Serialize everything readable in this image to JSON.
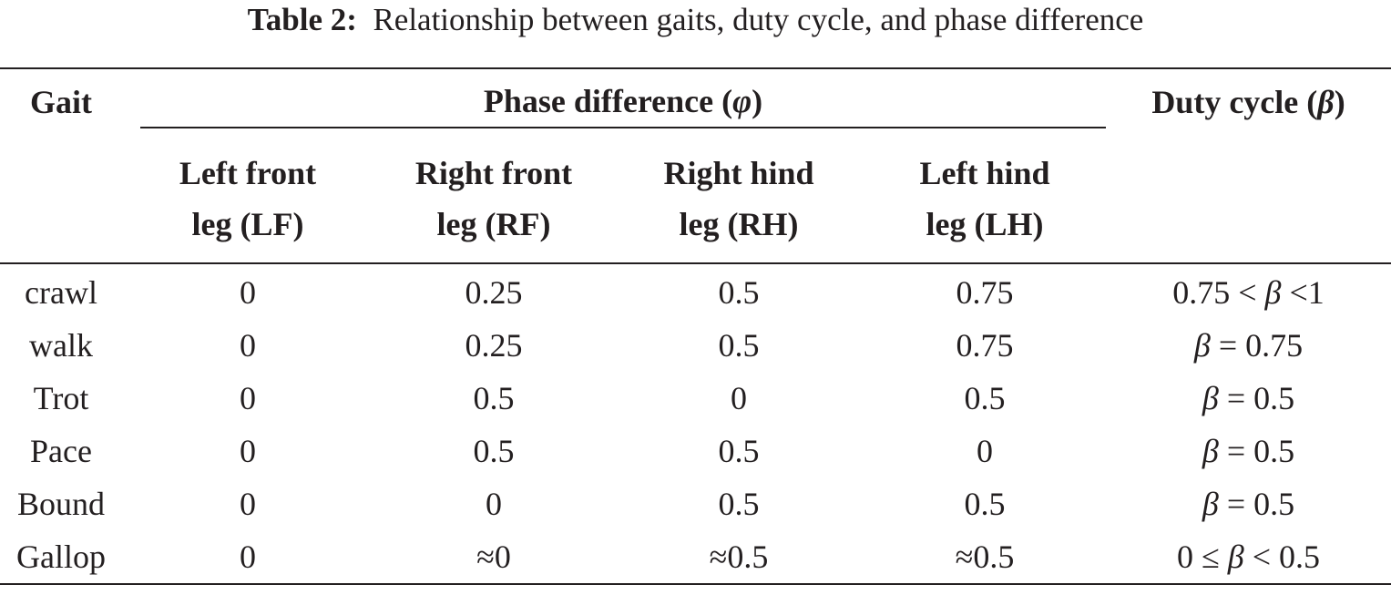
{
  "caption": {
    "label": "Table 2:",
    "text": "Relationship between gaits, duty cycle, and phase difference"
  },
  "headers": {
    "gait": "Gait",
    "phase_group_pre": "Phase difference (",
    "phase_symbol": "φ",
    "phase_group_post": ")",
    "duty_pre": "Duty cycle (",
    "duty_symbol": "β",
    "duty_post": ")",
    "legs": [
      {
        "line1": "Left front",
        "line2": "leg (LF)"
      },
      {
        "line1": "Right front",
        "line2": "leg (RF)"
      },
      {
        "line1": "Right hind",
        "line2": "leg (RH)"
      },
      {
        "line1": "Left hind",
        "line2": "leg (LH)"
      }
    ]
  },
  "rows": [
    {
      "gait": "crawl",
      "lf": "0",
      "rf": "0.25",
      "rh": "0.5",
      "lh": "0.75",
      "duty_a": "0.75 < ",
      "duty_sym": "β",
      "duty_b": " <1"
    },
    {
      "gait": "walk",
      "lf": "0",
      "rf": "0.25",
      "rh": "0.5",
      "lh": "0.75",
      "duty_a": "",
      "duty_sym": "β",
      "duty_b": " = 0.75"
    },
    {
      "gait": "Trot",
      "lf": "0",
      "rf": "0.5",
      "rh": "0",
      "lh": "0.5",
      "duty_a": "",
      "duty_sym": "β",
      "duty_b": " = 0.5"
    },
    {
      "gait": "Pace",
      "lf": "0",
      "rf": "0.5",
      "rh": "0.5",
      "lh": "0",
      "duty_a": "",
      "duty_sym": "β",
      "duty_b": " = 0.5"
    },
    {
      "gait": "Bound",
      "lf": "0",
      "rf": "0",
      "rh": "0.5",
      "lh": "0.5",
      "duty_a": "",
      "duty_sym": "β",
      "duty_b": " = 0.5"
    },
    {
      "gait": "Gallop",
      "lf": "0",
      "rf": "≈0",
      "rh": "≈0.5",
      "lh": "≈0.5",
      "duty_a": "0 ≤ ",
      "duty_sym": "β",
      "duty_b": " < 0.5"
    }
  ]
}
